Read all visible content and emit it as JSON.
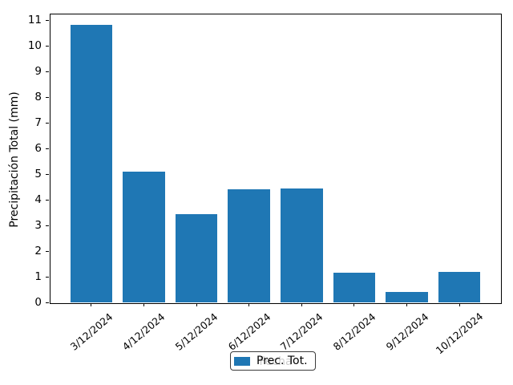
{
  "chart_data": {
    "type": "bar",
    "title": "",
    "categories": [
      "3/12/2024",
      "4/12/2024",
      "5/12/2024",
      "6/12/2024",
      "7/12/2024",
      "8/12/2024",
      "9/12/2024",
      "10/12/2024"
    ],
    "values": [
      10.8,
      5.1,
      3.45,
      4.4,
      4.45,
      1.15,
      0.4,
      1.2
    ],
    "series": [
      {
        "name": "Prec. Tot.",
        "values": [
          10.8,
          5.1,
          3.45,
          4.4,
          4.45,
          1.15,
          0.4,
          1.2
        ]
      }
    ],
    "xlabel": "Fecha",
    "ylabel": "Precipitación Total (mm)",
    "ylim": [
      0,
      11.25
    ],
    "yticks": [
      0,
      1,
      2,
      3,
      4,
      5,
      6,
      7,
      8,
      9,
      10,
      11
    ],
    "x_tick_rotation_deg": 45,
    "grid": false,
    "bar_color": "#1f77b4",
    "legend": {
      "label": "Prec. Tot.",
      "position": "lower center, below axes",
      "frame": true
    }
  }
}
